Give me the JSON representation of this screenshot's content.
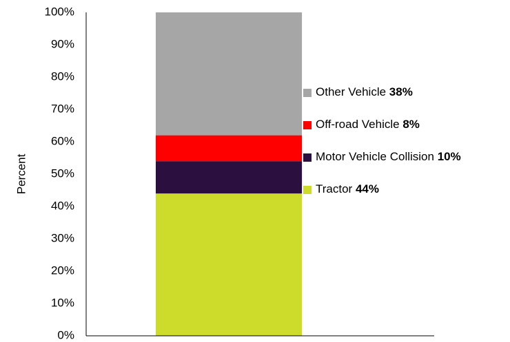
{
  "chart_data": {
    "type": "stacked-bar",
    "y_label": "Percent",
    "categories": [
      null
    ],
    "series": [
      {
        "name": "Tractor",
        "color": "#cddc2b",
        "values": [
          44
        ],
        "value_labels": [
          "44%"
        ]
      },
      {
        "name": "Motor Vehicle Collision",
        "color": "#2a0f3f",
        "values": [
          10
        ],
        "value_labels": [
          "10%"
        ]
      },
      {
        "name": "Off-road Vehicle",
        "color": "#ff0000",
        "values": [
          8
        ],
        "value_labels": [
          "8%"
        ]
      },
      {
        "name": "Other Vehicle",
        "color": "#a6a6a6",
        "values": [
          38
        ],
        "value_labels": [
          "38%"
        ]
      }
    ],
    "ylim": [
      0,
      100
    ],
    "yticks": [
      {
        "value": 0,
        "label": "0%"
      },
      {
        "value": 10,
        "label": "10%"
      },
      {
        "value": 20,
        "label": "20%"
      },
      {
        "value": 30,
        "label": "30%"
      },
      {
        "value": 40,
        "label": "40%"
      },
      {
        "value": 50,
        "label": "50%"
      },
      {
        "value": 60,
        "label": "60%"
      },
      {
        "value": 70,
        "label": "70%"
      },
      {
        "value": 80,
        "label": "80%"
      },
      {
        "value": 90,
        "label": "90%"
      },
      {
        "value": 100,
        "label": "100%"
      }
    ],
    "grid": false,
    "legend": "right"
  }
}
